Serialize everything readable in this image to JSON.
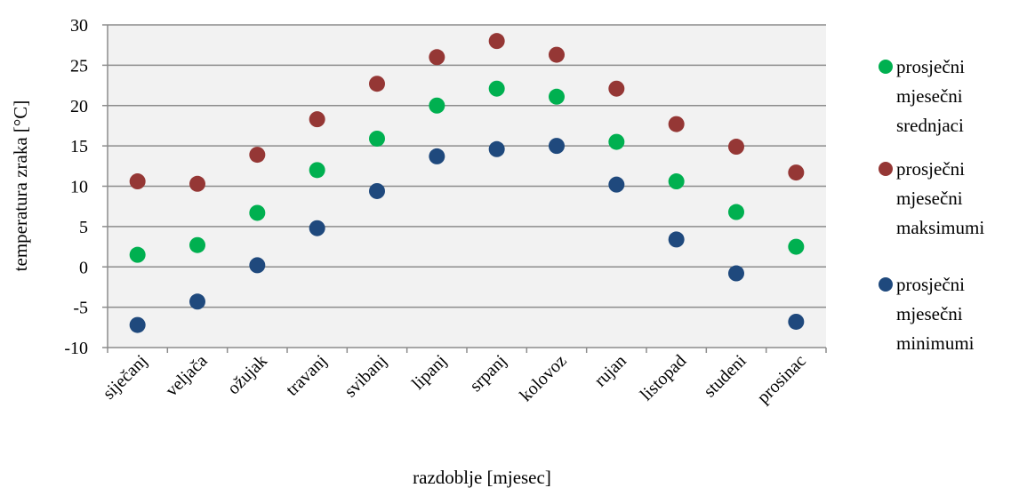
{
  "chart_data": {
    "type": "scatter",
    "categories": [
      "siječanj",
      "veljača",
      "ožujak",
      "travanj",
      "svibanj",
      "lipanj",
      "srpanj",
      "kolovoz",
      "rujan",
      "listopad",
      "studeni",
      "prosinac"
    ],
    "series": [
      {
        "name": "prosječni mjesečni srednjaci",
        "legend_lines": [
          "prosječni",
          "mjesečni",
          "srednjaci"
        ],
        "color": "#00b050",
        "values": [
          1.5,
          2.7,
          6.7,
          12.0,
          15.9,
          20.0,
          22.1,
          21.1,
          15.5,
          10.6,
          6.8,
          2.5
        ]
      },
      {
        "name": "prosječni mjesečni maksimumi",
        "legend_lines": [
          "prosječni",
          "mjesečni",
          "maksimumi"
        ],
        "color": "#953735",
        "values": [
          10.6,
          10.3,
          13.9,
          18.3,
          22.7,
          26.0,
          28.0,
          26.3,
          22.1,
          17.7,
          14.9,
          11.7
        ]
      },
      {
        "name": "prosječni mjesečni minimumi",
        "legend_lines": [
          "prosječni",
          "mjesečni",
          "minimumi"
        ],
        "color": "#1f497d",
        "values": [
          -7.2,
          -4.3,
          0.2,
          4.8,
          9.4,
          13.7,
          14.6,
          15.0,
          10.2,
          3.4,
          -0.8,
          -6.8
        ]
      }
    ],
    "ylabel": "temperatura zraka [°C]",
    "xlabel": "razdoblje [mjesec]",
    "ylim": [
      -10,
      30
    ],
    "y_ticks": [
      -10,
      -5,
      0,
      5,
      10,
      15,
      20,
      25,
      30
    ],
    "grid": true,
    "legend_position": "right",
    "plot_background": "#f2f2f2"
  }
}
